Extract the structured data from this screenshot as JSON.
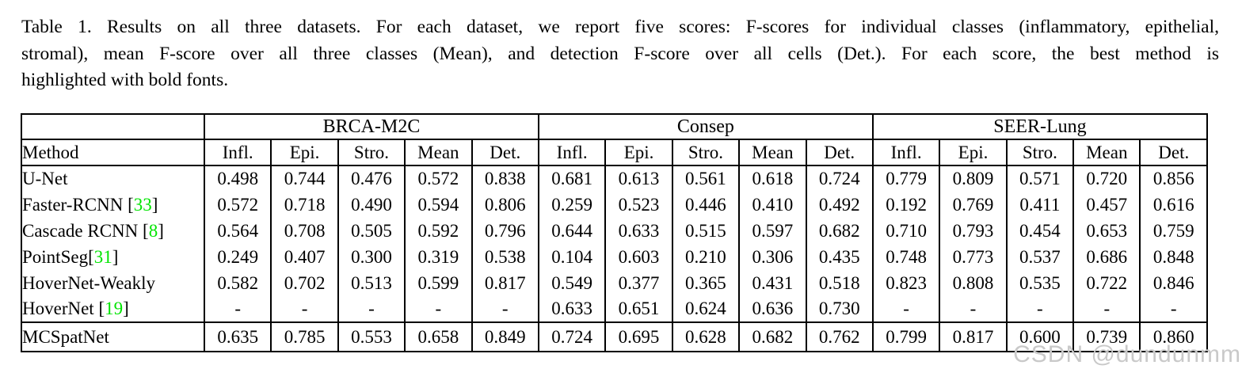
{
  "caption": {
    "lines": [
      "Table 1. Results on all three datasets.  For each dataset, we report five scores: F-scores for individual classes (inflammatory, epithelial,",
      "stromal), mean F-score over all three classes (Mean), and detection F-score over all cells (Det.).  For each score, the best method is",
      "highlighted with bold fonts."
    ]
  },
  "table": {
    "method_header": "Method",
    "datasets": [
      "BRCA-M2C",
      "Consep",
      "SEER-Lung"
    ],
    "col_headers": [
      "Infl.",
      "Epi.",
      "Stro.",
      "Mean",
      "Det."
    ],
    "rows": [
      {
        "label": "U-Net",
        "cite": null,
        "cite_space": false,
        "cells": [
          {
            "v": "0.498",
            "b": false
          },
          {
            "v": "0.744",
            "b": false
          },
          {
            "v": "0.476",
            "b": false
          },
          {
            "v": "0.572",
            "b": false
          },
          {
            "v": "0.838",
            "b": false
          },
          {
            "v": "0.681",
            "b": false
          },
          {
            "v": "0.613",
            "b": false
          },
          {
            "v": "0.561",
            "b": false
          },
          {
            "v": "0.618",
            "b": false
          },
          {
            "v": "0.724",
            "b": false
          },
          {
            "v": "0.779",
            "b": false
          },
          {
            "v": "0.809",
            "b": false
          },
          {
            "v": "0.571",
            "b": false
          },
          {
            "v": "0.720",
            "b": false
          },
          {
            "v": "0.856",
            "b": false
          }
        ]
      },
      {
        "label": "Faster-RCNN",
        "cite": "33",
        "cite_space": true,
        "cells": [
          {
            "v": "0.572",
            "b": false
          },
          {
            "v": "0.718",
            "b": false
          },
          {
            "v": "0.490",
            "b": false
          },
          {
            "v": "0.594",
            "b": false
          },
          {
            "v": "0.806",
            "b": false
          },
          {
            "v": "0.259",
            "b": false
          },
          {
            "v": "0.523",
            "b": false
          },
          {
            "v": "0.446",
            "b": false
          },
          {
            "v": "0.410",
            "b": false
          },
          {
            "v": "0.492",
            "b": false
          },
          {
            "v": "0.192",
            "b": false
          },
          {
            "v": "0.769",
            "b": false
          },
          {
            "v": "0.411",
            "b": false
          },
          {
            "v": "0.457",
            "b": false
          },
          {
            "v": "0.616",
            "b": false
          }
        ]
      },
      {
        "label": "Cascade RCNN",
        "cite": "8",
        "cite_space": true,
        "cells": [
          {
            "v": "0.564",
            "b": false
          },
          {
            "v": "0.708",
            "b": false
          },
          {
            "v": "0.505",
            "b": false
          },
          {
            "v": "0.592",
            "b": false
          },
          {
            "v": "0.796",
            "b": false
          },
          {
            "v": "0.644",
            "b": false
          },
          {
            "v": "0.633",
            "b": false
          },
          {
            "v": "0.515",
            "b": false
          },
          {
            "v": "0.597",
            "b": false
          },
          {
            "v": "0.682",
            "b": false
          },
          {
            "v": "0.710",
            "b": false
          },
          {
            "v": "0.793",
            "b": false
          },
          {
            "v": "0.454",
            "b": false
          },
          {
            "v": "0.653",
            "b": false
          },
          {
            "v": "0.759",
            "b": false
          }
        ]
      },
      {
        "label": "PointSeg",
        "cite": "31",
        "cite_space": false,
        "cells": [
          {
            "v": "0.249",
            "b": false
          },
          {
            "v": "0.407",
            "b": false
          },
          {
            "v": "0.300",
            "b": false
          },
          {
            "v": "0.319",
            "b": false
          },
          {
            "v": "0.538",
            "b": false
          },
          {
            "v": "0.104",
            "b": false
          },
          {
            "v": "0.603",
            "b": false
          },
          {
            "v": "0.210",
            "b": false
          },
          {
            "v": "0.306",
            "b": false
          },
          {
            "v": "0.435",
            "b": false
          },
          {
            "v": "0.748",
            "b": false
          },
          {
            "v": "0.773",
            "b": false
          },
          {
            "v": "0.537",
            "b": false
          },
          {
            "v": "0.686",
            "b": false
          },
          {
            "v": "0.848",
            "b": false
          }
        ]
      },
      {
        "label": "HoverNet-Weakly",
        "cite": null,
        "cite_space": false,
        "cells": [
          {
            "v": "0.582",
            "b": false
          },
          {
            "v": "0.702",
            "b": false
          },
          {
            "v": "0.513",
            "b": false
          },
          {
            "v": "0.599",
            "b": false
          },
          {
            "v": "0.817",
            "b": false
          },
          {
            "v": "0.549",
            "b": false
          },
          {
            "v": "0.377",
            "b": false
          },
          {
            "v": "0.365",
            "b": false
          },
          {
            "v": "0.431",
            "b": false
          },
          {
            "v": "0.518",
            "b": false
          },
          {
            "v": "0.823",
            "b": true
          },
          {
            "v": "0.808",
            "b": false
          },
          {
            "v": "0.535",
            "b": false
          },
          {
            "v": "0.722",
            "b": false
          },
          {
            "v": "0.846",
            "b": false
          }
        ]
      },
      {
        "label": "HoverNet",
        "cite": "19",
        "cite_space": true,
        "cells": [
          {
            "v": "-",
            "b": false
          },
          {
            "v": "-",
            "b": false
          },
          {
            "v": "-",
            "b": false
          },
          {
            "v": "-",
            "b": false
          },
          {
            "v": "-",
            "b": false
          },
          {
            "v": "0.633",
            "b": false
          },
          {
            "v": "0.651",
            "b": false
          },
          {
            "v": "0.624",
            "b": false
          },
          {
            "v": "0.636",
            "b": false
          },
          {
            "v": "0.730",
            "b": false
          },
          {
            "v": "-",
            "b": false
          },
          {
            "v": "-",
            "b": false
          },
          {
            "v": "-",
            "b": false
          },
          {
            "v": "-",
            "b": false
          },
          {
            "v": "-",
            "b": false
          }
        ]
      },
      {
        "label": "MCSpatNet",
        "cite": null,
        "cite_space": false,
        "cells": [
          {
            "v": "0.635",
            "b": true
          },
          {
            "v": "0.785",
            "b": true
          },
          {
            "v": "0.553",
            "b": true
          },
          {
            "v": "0.658",
            "b": true
          },
          {
            "v": "0.849",
            "b": true
          },
          {
            "v": "0.724",
            "b": true
          },
          {
            "v": "0.695",
            "b": true
          },
          {
            "v": "0.628",
            "b": true
          },
          {
            "v": "0.682",
            "b": true
          },
          {
            "v": "0.762",
            "b": true
          },
          {
            "v": "0.799",
            "b": false
          },
          {
            "v": "0.817",
            "b": true
          },
          {
            "v": "0.600",
            "b": true
          },
          {
            "v": "0.739",
            "b": true
          },
          {
            "v": "0.860",
            "b": true
          }
        ]
      }
    ]
  },
  "watermark": {
    "text": "CSDN @dundunmm"
  },
  "colors": {
    "citation_green": "#00e400",
    "watermark_gray": "#c9c9c9",
    "text": "#000000",
    "background": "#ffffff"
  }
}
